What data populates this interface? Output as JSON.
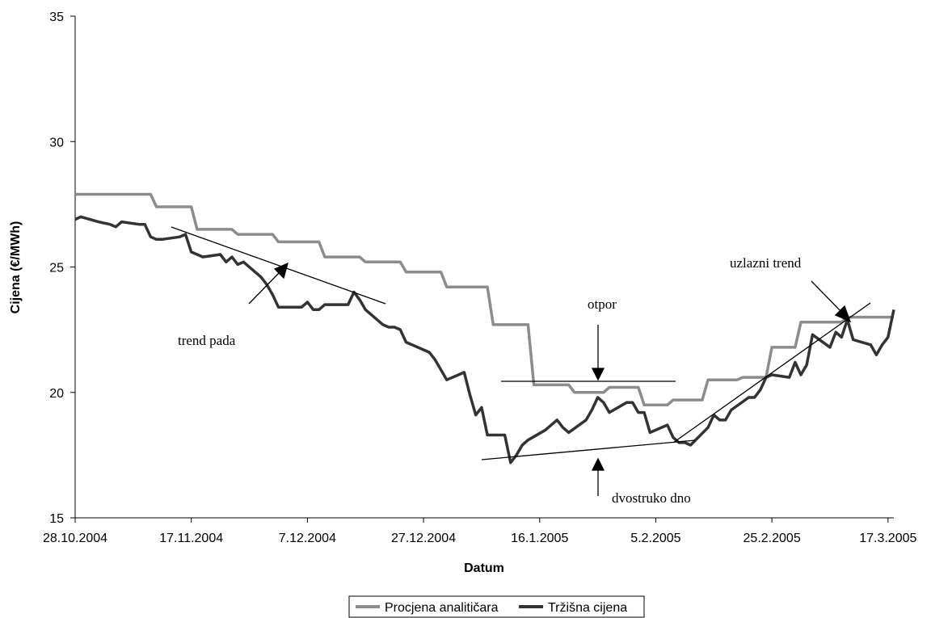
{
  "chart_data": {
    "type": "line",
    "xlabel": "Datum",
    "ylabel": "Cijena (€/MWh)",
    "x_range": [
      "28.10.2004",
      "18.3.2005"
    ],
    "ylim": [
      15,
      35
    ],
    "y_ticks": [
      "15",
      "20",
      "25",
      "30",
      "35"
    ],
    "x_ticks": [
      {
        "label": "28.10.2004",
        "date": "2004-10-28"
      },
      {
        "label": "17.11.2004",
        "date": "2004-11-17"
      },
      {
        "label": "7.12.2004",
        "date": "2004-12-07"
      },
      {
        "label": "27.12.2004",
        "date": "2004-12-27"
      },
      {
        "label": "16.1.2005",
        "date": "2005-01-16"
      },
      {
        "label": "5.2.2005",
        "date": "2005-02-05"
      },
      {
        "label": "25.2.2005",
        "date": "2005-02-25"
      },
      {
        "label": "17.3.2005",
        "date": "2005-03-17"
      }
    ],
    "grid": false,
    "legend_position": "bottom",
    "series": [
      {
        "name": "Procjena analitičara",
        "color": "#8c8c8c",
        "points": [
          [
            "2004-10-28",
            27.9
          ],
          [
            "2004-11-10",
            27.9
          ],
          [
            "2004-11-11",
            27.4
          ],
          [
            "2004-11-17",
            27.4
          ],
          [
            "2004-11-18",
            26.5
          ],
          [
            "2004-11-24",
            26.5
          ],
          [
            "2004-11-25",
            26.3
          ],
          [
            "2004-12-01",
            26.3
          ],
          [
            "2004-12-02",
            26.0
          ],
          [
            "2004-12-09",
            26.0
          ],
          [
            "2004-12-10",
            25.4
          ],
          [
            "2004-12-16",
            25.4
          ],
          [
            "2004-12-17",
            25.2
          ],
          [
            "2004-12-23",
            25.2
          ],
          [
            "2004-12-24",
            24.8
          ],
          [
            "2004-12-30",
            24.8
          ],
          [
            "2004-12-31",
            24.2
          ],
          [
            "2005-01-07",
            24.2
          ],
          [
            "2005-01-08",
            22.7
          ],
          [
            "2005-01-14",
            22.7
          ],
          [
            "2005-01-15",
            20.3
          ],
          [
            "2005-01-21",
            20.3
          ],
          [
            "2005-01-22",
            20.0
          ],
          [
            "2005-01-27",
            20.0
          ],
          [
            "2005-01-28",
            20.2
          ],
          [
            "2005-02-02",
            20.2
          ],
          [
            "2005-02-03",
            19.5
          ],
          [
            "2005-02-07",
            19.5
          ],
          [
            "2005-02-08",
            19.7
          ],
          [
            "2005-02-13",
            19.7
          ],
          [
            "2005-02-14",
            20.5
          ],
          [
            "2005-02-19",
            20.5
          ],
          [
            "2005-02-20",
            20.6
          ],
          [
            "2005-02-24",
            20.6
          ],
          [
            "2005-02-25",
            21.8
          ],
          [
            "2005-03-01",
            21.8
          ],
          [
            "2005-03-02",
            22.8
          ],
          [
            "2005-03-09",
            22.8
          ],
          [
            "2005-03-10",
            23.0
          ],
          [
            "2005-03-18",
            23.0
          ]
        ]
      },
      {
        "name": "Tržišna cijena",
        "color": "#333333",
        "points": [
          [
            "2004-10-28",
            26.9
          ],
          [
            "2004-10-29",
            27.0
          ],
          [
            "2004-11-01",
            26.8
          ],
          [
            "2004-11-03",
            26.7
          ],
          [
            "2004-11-04",
            26.6
          ],
          [
            "2004-11-05",
            26.8
          ],
          [
            "2004-11-08",
            26.7
          ],
          [
            "2004-11-09",
            26.7
          ],
          [
            "2004-11-10",
            26.2
          ],
          [
            "2004-11-11",
            26.1
          ],
          [
            "2004-11-12",
            26.1
          ],
          [
            "2004-11-15",
            26.2
          ],
          [
            "2004-11-16",
            26.3
          ],
          [
            "2004-11-17",
            25.6
          ],
          [
            "2004-11-18",
            25.5
          ],
          [
            "2004-11-19",
            25.4
          ],
          [
            "2004-11-22",
            25.5
          ],
          [
            "2004-11-23",
            25.2
          ],
          [
            "2004-11-24",
            25.4
          ],
          [
            "2004-11-25",
            25.1
          ],
          [
            "2004-11-26",
            25.2
          ],
          [
            "2004-11-29",
            24.6
          ],
          [
            "2004-11-30",
            24.3
          ],
          [
            "2004-12-01",
            23.9
          ],
          [
            "2004-12-02",
            23.4
          ],
          [
            "2004-12-03",
            23.4
          ],
          [
            "2004-12-06",
            23.4
          ],
          [
            "2004-12-07",
            23.6
          ],
          [
            "2004-12-08",
            23.3
          ],
          [
            "2004-12-09",
            23.3
          ],
          [
            "2004-12-10",
            23.5
          ],
          [
            "2004-12-13",
            23.5
          ],
          [
            "2004-12-14",
            23.5
          ],
          [
            "2004-12-15",
            24.0
          ],
          [
            "2004-12-16",
            23.7
          ],
          [
            "2004-12-17",
            23.3
          ],
          [
            "2004-12-20",
            22.7
          ],
          [
            "2004-12-21",
            22.6
          ],
          [
            "2004-12-22",
            22.6
          ],
          [
            "2004-12-23",
            22.5
          ],
          [
            "2004-12-24",
            22.0
          ],
          [
            "2004-12-27",
            21.7
          ],
          [
            "2004-12-28",
            21.6
          ],
          [
            "2004-12-29",
            21.3
          ],
          [
            "2004-12-30",
            20.9
          ],
          [
            "2004-12-31",
            20.5
          ],
          [
            "2005-01-03",
            20.8
          ],
          [
            "2005-01-04",
            19.9
          ],
          [
            "2005-01-05",
            19.1
          ],
          [
            "2005-01-06",
            19.4
          ],
          [
            "2005-01-07",
            18.3
          ],
          [
            "2005-01-10",
            18.3
          ],
          [
            "2005-01-11",
            17.2
          ],
          [
            "2005-01-12",
            17.5
          ],
          [
            "2005-01-13",
            17.9
          ],
          [
            "2005-01-14",
            18.1
          ],
          [
            "2005-01-17",
            18.5
          ],
          [
            "2005-01-18",
            18.7
          ],
          [
            "2005-01-19",
            18.9
          ],
          [
            "2005-01-20",
            18.6
          ],
          [
            "2005-01-21",
            18.4
          ],
          [
            "2005-01-24",
            18.9
          ],
          [
            "2005-01-25",
            19.3
          ],
          [
            "2005-01-26",
            19.8
          ],
          [
            "2005-01-27",
            19.6
          ],
          [
            "2005-01-28",
            19.2
          ],
          [
            "2005-01-31",
            19.6
          ],
          [
            "2005-02-01",
            19.6
          ],
          [
            "2005-02-02",
            19.2
          ],
          [
            "2005-02-03",
            19.2
          ],
          [
            "2005-02-04",
            18.4
          ],
          [
            "2005-02-07",
            18.7
          ],
          [
            "2005-02-08",
            18.2
          ],
          [
            "2005-02-09",
            18.0
          ],
          [
            "2005-02-10",
            18.0
          ],
          [
            "2005-02-11",
            17.9
          ],
          [
            "2005-02-14",
            18.6
          ],
          [
            "2005-02-15",
            19.1
          ],
          [
            "2005-02-16",
            18.9
          ],
          [
            "2005-02-17",
            18.9
          ],
          [
            "2005-02-18",
            19.3
          ],
          [
            "2005-02-21",
            19.8
          ],
          [
            "2005-02-22",
            19.8
          ],
          [
            "2005-02-23",
            20.1
          ],
          [
            "2005-02-24",
            20.6
          ],
          [
            "2005-02-25",
            20.7
          ],
          [
            "2005-02-28",
            20.6
          ],
          [
            "2005-03-01",
            21.2
          ],
          [
            "2005-03-02",
            20.7
          ],
          [
            "2005-03-03",
            21.1
          ],
          [
            "2005-03-04",
            22.3
          ],
          [
            "2005-03-07",
            21.8
          ],
          [
            "2005-03-08",
            22.4
          ],
          [
            "2005-03-09",
            22.2
          ],
          [
            "2005-03-10",
            22.9
          ],
          [
            "2005-03-11",
            22.1
          ],
          [
            "2005-03-14",
            21.9
          ],
          [
            "2005-03-15",
            21.5
          ],
          [
            "2005-03-16",
            21.9
          ],
          [
            "2005-03-17",
            22.2
          ],
          [
            "2005-03-18",
            23.3
          ]
        ]
      }
    ],
    "annotations": [
      {
        "text": "trend pada"
      },
      {
        "text": "otpor"
      },
      {
        "text": "dvostruko dno"
      },
      {
        "text": "uzlazni trend"
      }
    ]
  }
}
